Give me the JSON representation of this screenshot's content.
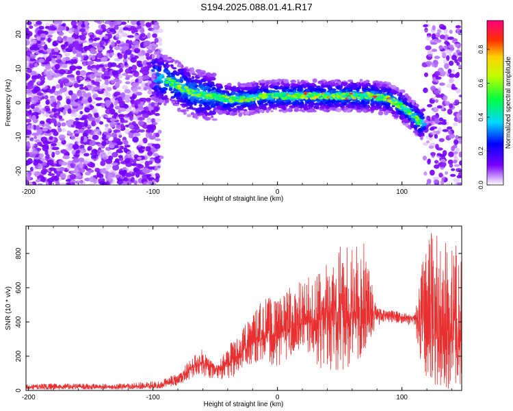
{
  "title": "S194.2025.088.01.41.R17",
  "chart_data": [
    {
      "type": "heatmap",
      "xlabel": "Height of straight line (km)",
      "ylabel": "Frequency (Hz)",
      "xlim": [
        -202,
        148
      ],
      "ylim": [
        -24,
        24
      ],
      "x_ticks": [
        -200,
        -100,
        0,
        100
      ],
      "y_ticks": [
        -20,
        -10,
        0,
        10,
        20
      ],
      "colorbar": {
        "label": "Normalized spectral amplitude",
        "range": [
          0.0,
          0.97
        ],
        "ticks": [
          "0.0",
          "0.2",
          "0.4",
          "0.6",
          "0.8"
        ],
        "tick_values": [
          0.0,
          0.2,
          0.4,
          0.6,
          0.8
        ]
      },
      "ridge": {
        "description_values_x": [
          -100,
          -85,
          -70,
          -55,
          -40,
          -25,
          -10,
          0,
          15,
          30,
          45,
          60,
          75,
          90,
          100,
          110,
          115
        ],
        "frequency_hz": [
          8,
          6,
          3,
          2,
          1,
          1,
          2,
          2,
          2,
          2,
          2,
          2,
          2,
          1,
          -1,
          -4,
          -6
        ]
      },
      "grid": false
    },
    {
      "type": "line",
      "xlabel": "Height of straight line (km)",
      "ylabel": "SNR (10 * v/v)",
      "xlim": [
        -202,
        148
      ],
      "ylim": [
        0,
        960
      ],
      "x_ticks": [
        -200,
        -100,
        0,
        100
      ],
      "y_ticks": [
        0,
        200,
        400,
        600,
        800
      ],
      "series": [
        {
          "color": "#e83030",
          "envelope": {
            "x": [
              -202,
              -120,
              -95,
              -80,
              -70,
              -60,
              -50,
              -40,
              -30,
              -20,
              -10,
              0,
              10,
              20,
              30,
              40,
              50,
              60,
              70,
              80,
              90,
              100,
              110,
              115,
              120,
              125,
              130,
              135,
              140,
              148
            ],
            "mean": [
              20,
              20,
              25,
              60,
              130,
              170,
              120,
              150,
              220,
              280,
              320,
              330,
              360,
              380,
              400,
              430,
              470,
              440,
              420,
              450,
              440,
              430,
              420,
              400,
              380,
              360,
              340,
              330,
              320,
              300
            ],
            "peak": [
              40,
              40,
              60,
              100,
              180,
              250,
              140,
              260,
              350,
              450,
              560,
              520,
              620,
              640,
              690,
              750,
              870,
              850,
              860,
              480,
              470,
              460,
              440,
              700,
              860,
              960,
              900,
              870,
              850,
              850
            ],
            "trough": [
              5,
              5,
              10,
              30,
              60,
              80,
              60,
              60,
              100,
              150,
              180,
              120,
              200,
              200,
              150,
              100,
              100,
              150,
              180,
              380,
              400,
              390,
              380,
              150,
              60,
              40,
              20,
              10,
              10,
              10
            ]
          }
        }
      ],
      "grid": false
    }
  ]
}
